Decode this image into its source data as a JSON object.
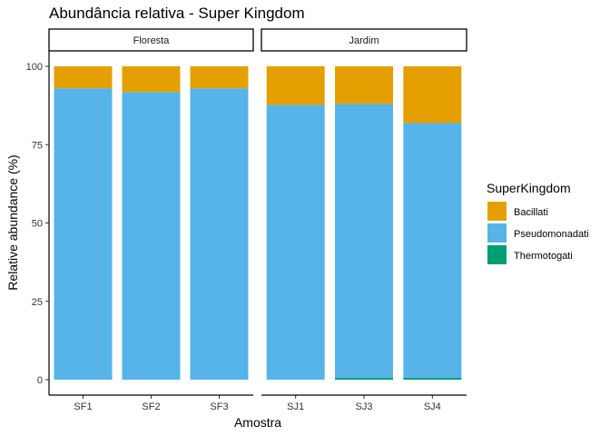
{
  "chart_data": {
    "type": "bar",
    "stacked": true,
    "faceted": true,
    "title": "Abundância relativa - Super Kingdom",
    "xlabel": "Amostra",
    "ylabel": "Relative abundance (%)",
    "ylim": [
      0,
      100
    ],
    "y_ticks": [
      "0",
      "25",
      "50",
      "75",
      "100"
    ],
    "grid": false,
    "legend": {
      "title": "SuperKingdom",
      "position": "right",
      "entries": [
        {
          "name": "Bacillati",
          "color": "#E69F00"
        },
        {
          "name": "Pseudomonadati",
          "color": "#56B4E9"
        },
        {
          "name": "Thermotogati",
          "color": "#009E73"
        }
      ]
    },
    "facets": [
      {
        "label": "Floresta",
        "categories": [
          "SF1",
          "SF2",
          "SF3"
        ],
        "series": [
          {
            "name": "Thermotogati",
            "values": [
              0,
              0,
              0
            ]
          },
          {
            "name": "Pseudomonadati",
            "values": [
              93,
              91.8,
              93
            ]
          },
          {
            "name": "Bacillati",
            "values": [
              7,
              8.2,
              7
            ]
          }
        ]
      },
      {
        "label": "Jardim",
        "categories": [
          "SJ1",
          "SJ3",
          "SJ4"
        ],
        "series": [
          {
            "name": "Thermotogati",
            "values": [
              0,
              0.6,
              0.6
            ]
          },
          {
            "name": "Pseudomonadati",
            "values": [
              87.7,
              87.4,
              81.3
            ]
          },
          {
            "name": "Bacillati",
            "values": [
              12.3,
              12,
              18.1
            ]
          }
        ]
      }
    ]
  }
}
